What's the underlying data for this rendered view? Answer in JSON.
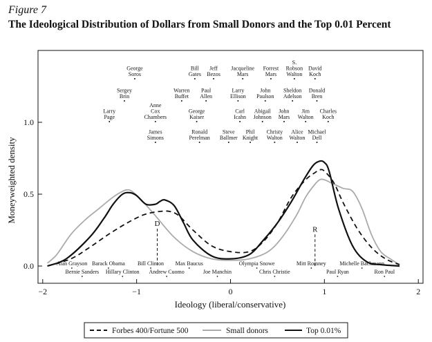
{
  "figure_label": "Figure 7",
  "title": "The Ideological Distribution of Dollars from Small Donors and the Top 0.01 Percent",
  "chart_data": {
    "type": "line",
    "xlabel": "Ideology (liberal/conservative)",
    "ylabel": "Moneyweighted density",
    "xlim": [
      -2.05,
      2.05
    ],
    "ylim": [
      -0.12,
      1.5
    ],
    "xticks": [
      -2,
      -1,
      0,
      1,
      2
    ],
    "xtick_labels": [
      "−2",
      "−1",
      "0",
      "1",
      "2"
    ],
    "yticks": [
      0.0,
      0.5,
      1.0
    ],
    "ytick_labels": [
      "0.0",
      "0.5",
      "1.0"
    ],
    "grid": false,
    "legend_position": "bottom",
    "series": [
      {
        "name": "Forbes 400/Fortune 500",
        "style": "dashed",
        "color": "#111111",
        "x": [
          -1.95,
          -1.7,
          -1.5,
          -1.3,
          -1.1,
          -0.95,
          -0.85,
          -0.75,
          -0.65,
          -0.55,
          -0.4,
          -0.2,
          0.0,
          0.2,
          0.35,
          0.5,
          0.65,
          0.8,
          0.9,
          0.95,
          1.0,
          1.1,
          1.2,
          1.35,
          1.5,
          1.65,
          1.8
        ],
        "y": [
          0.0,
          0.05,
          0.13,
          0.22,
          0.3,
          0.35,
          0.37,
          0.38,
          0.38,
          0.35,
          0.25,
          0.14,
          0.1,
          0.1,
          0.17,
          0.3,
          0.48,
          0.6,
          0.65,
          0.67,
          0.66,
          0.58,
          0.44,
          0.26,
          0.13,
          0.05,
          0.01
        ]
      },
      {
        "name": "Small donors",
        "style": "solid",
        "color": "#aaaaaa",
        "x": [
          -1.95,
          -1.85,
          -1.7,
          -1.55,
          -1.4,
          -1.25,
          -1.15,
          -1.1,
          -1.05,
          -0.95,
          -0.8,
          -0.6,
          -0.4,
          -0.2,
          0.0,
          0.2,
          0.4,
          0.55,
          0.7,
          0.8,
          0.9,
          0.95,
          1.0,
          1.1,
          1.2,
          1.3,
          1.4,
          1.5,
          1.6,
          1.7,
          1.8
        ],
        "y": [
          0.02,
          0.08,
          0.22,
          0.32,
          0.4,
          0.48,
          0.52,
          0.53,
          0.52,
          0.46,
          0.35,
          0.2,
          0.1,
          0.05,
          0.04,
          0.05,
          0.1,
          0.2,
          0.35,
          0.48,
          0.57,
          0.6,
          0.6,
          0.57,
          0.54,
          0.52,
          0.4,
          0.22,
          0.1,
          0.05,
          0.01
        ]
      },
      {
        "name": "Top 0.01%",
        "style": "solid",
        "color": "#111111",
        "x": [
          -1.95,
          -1.75,
          -1.5,
          -1.35,
          -1.25,
          -1.15,
          -1.07,
          -1.0,
          -0.9,
          -0.8,
          -0.75,
          -0.7,
          -0.6,
          -0.5,
          -0.4,
          -0.2,
          0.0,
          0.2,
          0.35,
          0.5,
          0.65,
          0.78,
          0.88,
          0.95,
          1.0,
          1.05,
          1.15,
          1.3,
          1.45,
          1.6,
          1.8
        ],
        "y": [
          0.0,
          0.05,
          0.2,
          0.33,
          0.43,
          0.5,
          0.51,
          0.49,
          0.43,
          0.43,
          0.45,
          0.46,
          0.42,
          0.3,
          0.18,
          0.07,
          0.05,
          0.08,
          0.18,
          0.3,
          0.45,
          0.6,
          0.7,
          0.73,
          0.72,
          0.66,
          0.4,
          0.14,
          0.03,
          0.01,
          0.0
        ]
      }
    ],
    "markers": [
      {
        "label": "D",
        "x": -0.78,
        "y_top": 0.26
      },
      {
        "label": "R",
        "x": 0.9,
        "y_top": 0.22
      }
    ],
    "annotations_top": [
      {
        "lines": [
          "George",
          "Soros"
        ],
        "x": -1.02,
        "row": 1
      },
      {
        "lines": [
          "Bill",
          "Gates"
        ],
        "x": -0.38,
        "row": 1
      },
      {
        "lines": [
          "Jeff",
          "Bezos"
        ],
        "x": -0.18,
        "row": 1
      },
      {
        "lines": [
          "Jacqueline",
          "Mars"
        ],
        "x": 0.13,
        "row": 1
      },
      {
        "lines": [
          "Forrest",
          "Mars"
        ],
        "x": 0.43,
        "row": 1
      },
      {
        "lines": [
          "S.",
          "Robson",
          "Walton"
        ],
        "x": 0.68,
        "row": 1
      },
      {
        "lines": [
          "David",
          "Koch"
        ],
        "x": 0.9,
        "row": 1
      },
      {
        "lines": [
          "Sergey",
          "Brin"
        ],
        "x": -1.13,
        "row": 2
      },
      {
        "lines": [
          "Warren",
          "Buffet"
        ],
        "x": -0.52,
        "row": 2
      },
      {
        "lines": [
          "Paul",
          "Allen"
        ],
        "x": -0.26,
        "row": 2
      },
      {
        "lines": [
          "Larry",
          "Ellison"
        ],
        "x": 0.08,
        "row": 2
      },
      {
        "lines": [
          "John",
          "Paulson"
        ],
        "x": 0.37,
        "row": 2
      },
      {
        "lines": [
          "Sheldon",
          "Adelson"
        ],
        "x": 0.66,
        "row": 2
      },
      {
        "lines": [
          "Donald",
          "Bren"
        ],
        "x": 0.92,
        "row": 2
      },
      {
        "lines": [
          "Larry",
          "Page"
        ],
        "x": -1.29,
        "row": 3
      },
      {
        "lines": [
          "Anne",
          "Cox",
          "Chambers"
        ],
        "x": -0.8,
        "row": 3
      },
      {
        "lines": [
          "George",
          "Kaiser"
        ],
        "x": -0.36,
        "row": 3
      },
      {
        "lines": [
          "Carl",
          "Icahn"
        ],
        "x": 0.1,
        "row": 3
      },
      {
        "lines": [
          "Abigail",
          "Johnson"
        ],
        "x": 0.34,
        "row": 3
      },
      {
        "lines": [
          "John",
          "Mars"
        ],
        "x": 0.57,
        "row": 3
      },
      {
        "lines": [
          "Jim",
          "Walton"
        ],
        "x": 0.8,
        "row": 3
      },
      {
        "lines": [
          "Charles",
          "Koch"
        ],
        "x": 1.04,
        "row": 3
      },
      {
        "lines": [
          "James",
          "Simons"
        ],
        "x": -0.8,
        "row": 4
      },
      {
        "lines": [
          "Ronald",
          "Perelman"
        ],
        "x": -0.33,
        "row": 4
      },
      {
        "lines": [
          "Steve",
          "Ballmer"
        ],
        "x": -0.02,
        "row": 4
      },
      {
        "lines": [
          "Phil",
          "Knight"
        ],
        "x": 0.21,
        "row": 4
      },
      {
        "lines": [
          "Christy",
          "Walton"
        ],
        "x": 0.47,
        "row": 4
      },
      {
        "lines": [
          "Alice",
          "Walton"
        ],
        "x": 0.71,
        "row": 4
      },
      {
        "lines": [
          "Michael",
          "Dell"
        ],
        "x": 0.92,
        "row": 4
      }
    ],
    "annotations_bottom": [
      {
        "text": "Alan Grayson",
        "x": -1.69,
        "row": 1
      },
      {
        "text": "Barack Obama",
        "x": -1.3,
        "row": 1
      },
      {
        "text": "Bill Clinton",
        "x": -0.85,
        "row": 1
      },
      {
        "text": "Max Baucus",
        "x": -0.44,
        "row": 1
      },
      {
        "text": "Olympia Snowe",
        "x": 0.28,
        "row": 1
      },
      {
        "text": "Mitt Romney",
        "x": 0.86,
        "row": 1
      },
      {
        "text": "Michelle Bachmann",
        "x": 1.4,
        "row": 1
      },
      {
        "text": "Bernie Sanders",
        "x": -1.58,
        "row": 2
      },
      {
        "text": "Hillary Clinton",
        "x": -1.15,
        "row": 2
      },
      {
        "text": "Andrew Cuomo",
        "x": -0.68,
        "row": 2
      },
      {
        "text": "Joe Manchin",
        "x": -0.14,
        "row": 2
      },
      {
        "text": "Chris Christie",
        "x": 0.47,
        "row": 2
      },
      {
        "text": "Paul Ryan",
        "x": 1.14,
        "row": 2
      },
      {
        "text": "Ron Paul",
        "x": 1.64,
        "row": 2
      }
    ]
  }
}
